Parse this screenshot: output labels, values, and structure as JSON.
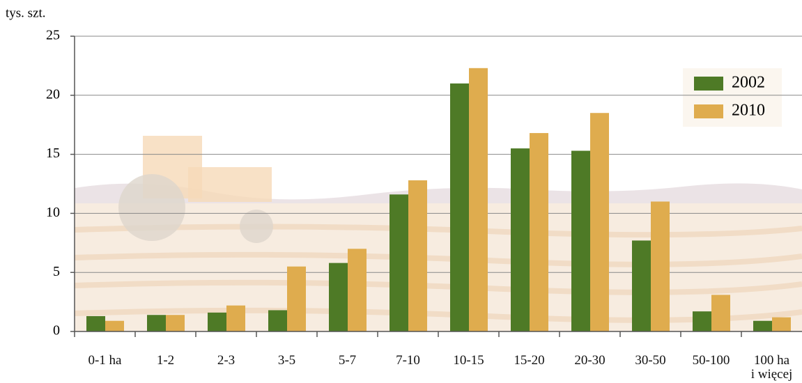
{
  "chart_data": {
    "type": "bar",
    "y_label": "tys. szt.",
    "categories": [
      "0-1 ha",
      "1-2",
      "2-3",
      "3-5",
      "5-7",
      "7-10",
      "10-15",
      "15-20",
      "20-30",
      "30-50",
      "50-100",
      "100 ha\ni więcej"
    ],
    "series": [
      {
        "name": "2002",
        "color": "#4e7a26",
        "values": [
          1.3,
          1.4,
          1.6,
          1.8,
          5.8,
          11.6,
          21.0,
          15.5,
          15.3,
          7.7,
          1.7,
          0.9
        ]
      },
      {
        "name": "2010",
        "color": "#dfac4e",
        "values": [
          0.9,
          1.4,
          2.2,
          5.5,
          7.0,
          12.8,
          22.3,
          16.8,
          18.5,
          11.0,
          3.1,
          1.2
        ]
      }
    ],
    "ylim": [
      0,
      25
    ],
    "yticks": [
      0,
      5,
      10,
      15,
      20,
      25
    ],
    "grid": true,
    "legend": "upper right"
  }
}
